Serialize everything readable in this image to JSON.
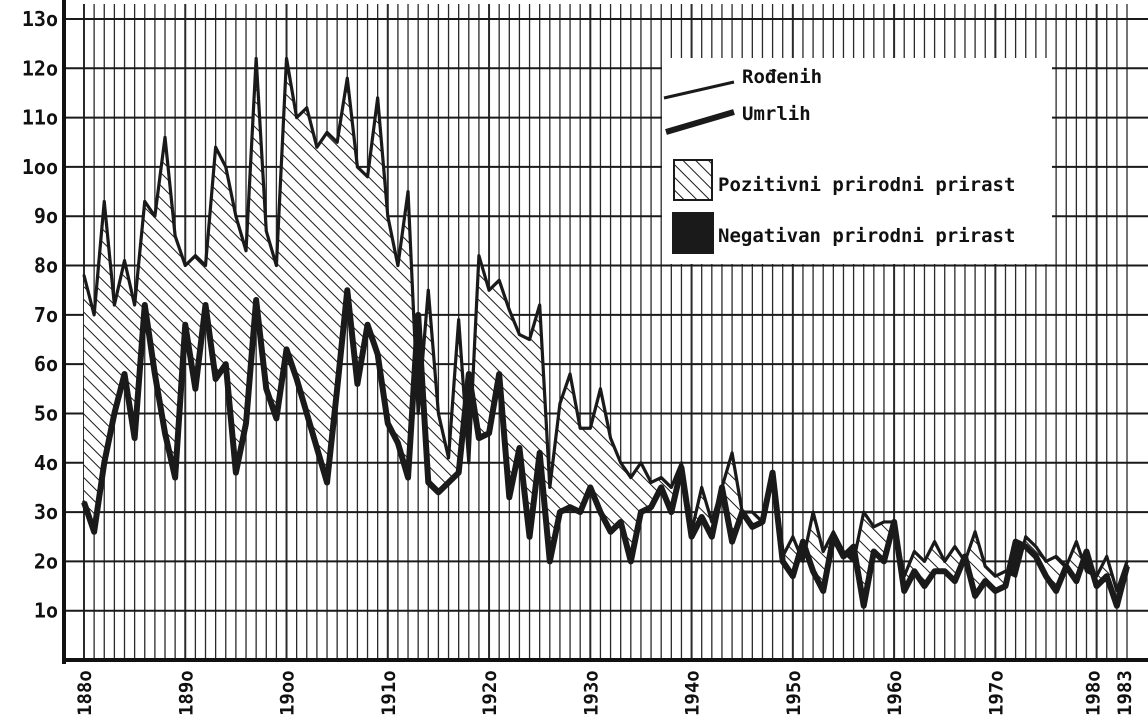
{
  "chart_data": {
    "type": "area",
    "title": "",
    "xlabel": "",
    "ylabel": "",
    "xlim": [
      1880,
      1983
    ],
    "ylim": [
      0,
      130
    ],
    "grid": true,
    "y_ticks": [
      "1o",
      "2o",
      "3o",
      "4o",
      "5o",
      "6o",
      "7o",
      "8o",
      "9o",
      "1oo",
      "11o",
      "12o",
      "13o"
    ],
    "x_ticks": [
      "188o",
      "189o",
      "19oo",
      "191o",
      "192o",
      "193o",
      "194o",
      "195o",
      "196o",
      "197o",
      "198o",
      "1983"
    ],
    "legend": {
      "placement": "top-right",
      "births": "Rođenih",
      "deaths": "Umrlih",
      "positive": "Pozitivni prirodni prirast",
      "negative": "Negativan prirodni prirast"
    },
    "colors": {
      "line": "#1a1a1a",
      "hatch": "#1a1a1a",
      "background": "#ffffff"
    },
    "series": [
      {
        "name": "Rođenih",
        "x": [
          1880,
          1881,
          1882,
          1883,
          1884,
          1885,
          1886,
          1887,
          1888,
          1889,
          1890,
          1891,
          1892,
          1893,
          1894,
          1895,
          1896,
          1897,
          1898,
          1899,
          1900,
          1901,
          1902,
          1903,
          1904,
          1905,
          1906,
          1907,
          1908,
          1909,
          1910,
          1911,
          1912,
          1913,
          1914,
          1915,
          1916,
          1917,
          1918,
          1919,
          1920,
          1921,
          1922,
          1923,
          1924,
          1925,
          1926,
          1927,
          1928,
          1929,
          1930,
          1931,
          1932,
          1933,
          1934,
          1935,
          1936,
          1937,
          1938,
          1939,
          1940,
          1941,
          1942,
          1943,
          1944,
          1945,
          1946,
          1947,
          1948,
          1949,
          1950,
          1951,
          1952,
          1953,
          1954,
          1955,
          1956,
          1957,
          1958,
          1959,
          1960,
          1961,
          1962,
          1963,
          1964,
          1965,
          1966,
          1967,
          1968,
          1969,
          1970,
          1971,
          1972,
          1973,
          1974,
          1975,
          1976,
          1977,
          1978,
          1979,
          1980,
          1981,
          1982,
          1983
        ],
        "values": [
          78,
          70,
          93,
          72,
          81,
          72,
          93,
          90,
          106,
          86,
          80,
          82,
          80,
          104,
          100,
          90,
          83,
          122,
          87,
          80,
          122,
          110,
          112,
          104,
          107,
          105,
          118,
          100,
          98,
          114,
          90,
          80,
          95,
          50,
          75,
          50,
          41,
          69,
          40,
          82,
          75,
          77,
          71,
          66,
          65,
          72,
          35,
          52,
          58,
          47,
          47,
          55,
          45,
          40,
          37,
          40,
          36,
          37,
          35,
          40,
          26,
          35,
          28,
          35,
          42,
          30,
          30,
          28,
          38,
          21,
          25,
          20,
          30,
          22,
          26,
          22,
          20,
          30,
          27,
          28,
          28,
          17,
          22,
          20,
          24,
          20,
          23,
          20,
          26,
          19,
          17,
          18,
          17,
          25,
          23,
          20,
          21,
          19,
          24,
          18,
          17,
          21,
          14,
          20
        ]
      },
      {
        "name": "Umrlih",
        "x": [
          1880,
          1881,
          1882,
          1883,
          1884,
          1885,
          1886,
          1887,
          1888,
          1889,
          1890,
          1891,
          1892,
          1893,
          1894,
          1895,
          1896,
          1897,
          1898,
          1899,
          1900,
          1901,
          1902,
          1903,
          1904,
          1905,
          1906,
          1907,
          1908,
          1909,
          1910,
          1911,
          1912,
          1913,
          1914,
          1915,
          1916,
          1917,
          1918,
          1919,
          1920,
          1921,
          1922,
          1923,
          1924,
          1925,
          1926,
          1927,
          1928,
          1929,
          1930,
          1931,
          1932,
          1933,
          1934,
          1935,
          1936,
          1937,
          1938,
          1939,
          1940,
          1941,
          1942,
          1943,
          1944,
          1945,
          1946,
          1947,
          1948,
          1949,
          1950,
          1951,
          1952,
          1953,
          1954,
          1955,
          1956,
          1957,
          1958,
          1959,
          1960,
          1961,
          1962,
          1963,
          1964,
          1965,
          1966,
          1967,
          1968,
          1969,
          1970,
          1971,
          1972,
          1973,
          1974,
          1975,
          1976,
          1977,
          1978,
          1979,
          1980,
          1981,
          1982,
          1983
        ],
        "values": [
          32,
          26,
          40,
          50,
          58,
          45,
          72,
          58,
          46,
          37,
          68,
          55,
          72,
          57,
          60,
          38,
          48,
          73,
          55,
          49,
          63,
          57,
          50,
          43,
          36,
          55,
          75,
          56,
          68,
          62,
          48,
          44,
          37,
          70,
          36,
          34,
          36,
          38,
          58,
          45,
          46,
          58,
          33,
          43,
          25,
          42,
          20,
          30,
          31,
          30,
          35,
          30,
          26,
          28,
          20,
          30,
          31,
          35,
          30,
          39,
          25,
          29,
          25,
          35,
          24,
          30,
          27,
          28,
          38,
          20,
          17,
          24,
          18,
          14,
          25,
          21,
          23,
          11,
          22,
          20,
          28,
          14,
          18,
          15,
          18,
          18,
          16,
          21,
          13,
          16,
          14,
          15,
          24,
          23,
          21,
          17,
          14,
          19,
          16,
          22,
          15,
          17,
          11,
          19
        ]
      }
    ]
  }
}
